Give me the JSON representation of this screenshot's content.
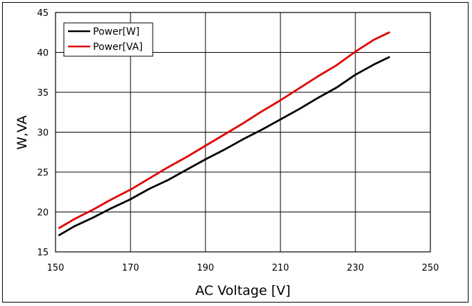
{
  "chart_data": {
    "type": "line",
    "title": "",
    "xlabel": "AC Voltage [V]",
    "ylabel": "W,VA",
    "xlim": [
      150,
      250
    ],
    "ylim": [
      15,
      45
    ],
    "xticks": [
      150,
      170,
      190,
      210,
      230,
      250
    ],
    "yticks": [
      15,
      20,
      25,
      30,
      35,
      40,
      45
    ],
    "grid": true,
    "legend_position": "top-left",
    "series": [
      {
        "name": "Power[W]",
        "color": "#000000",
        "x": [
          151,
          155,
          160,
          165,
          170,
          175,
          180,
          185,
          190,
          195,
          200,
          205,
          210,
          215,
          220,
          225,
          230,
          235,
          239
        ],
        "y": [
          17.1,
          18.2,
          19.3,
          20.5,
          21.6,
          22.9,
          24.0,
          25.3,
          26.6,
          27.8,
          29.1,
          30.3,
          31.6,
          32.9,
          34.3,
          35.6,
          37.2,
          38.5,
          39.4
        ]
      },
      {
        "name": "Power[VA]",
        "color": "#e00000",
        "x": [
          151,
          155,
          160,
          165,
          170,
          175,
          180,
          185,
          190,
          195,
          200,
          205,
          210,
          215,
          220,
          225,
          230,
          235,
          239
        ],
        "y": [
          18.0,
          19.1,
          20.3,
          21.6,
          22.8,
          24.2,
          25.6,
          26.9,
          28.3,
          29.7,
          31.1,
          32.6,
          34.0,
          35.5,
          37.0,
          38.4,
          40.1,
          41.6,
          42.5
        ]
      }
    ]
  }
}
